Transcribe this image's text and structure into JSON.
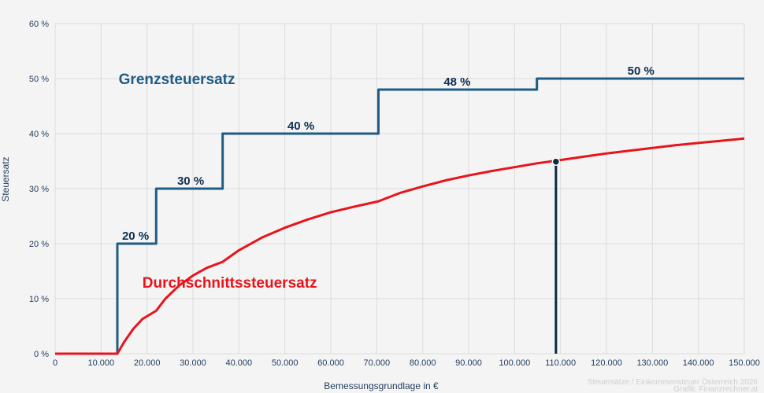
{
  "chart_data": {
    "type": "line",
    "title": "",
    "xlabel": "Bemessungsgrundlage in €",
    "ylabel": "Steuersatz",
    "xlim": [
      0,
      150000
    ],
    "ylim": [
      0,
      60
    ],
    "grid": true,
    "x_ticks": [
      {
        "value": 0,
        "label": "0"
      },
      {
        "value": 10000,
        "label": "10.000"
      },
      {
        "value": 20000,
        "label": "20.000"
      },
      {
        "value": 30000,
        "label": "30.000"
      },
      {
        "value": 40000,
        "label": "40.000"
      },
      {
        "value": 50000,
        "label": "50.000"
      },
      {
        "value": 60000,
        "label": "60.000"
      },
      {
        "value": 70000,
        "label": "70.000"
      },
      {
        "value": 80000,
        "label": "80.000"
      },
      {
        "value": 90000,
        "label": "90.000"
      },
      {
        "value": 100000,
        "label": "100.000"
      },
      {
        "value": 110000,
        "label": "110.000"
      },
      {
        "value": 120000,
        "label": "120.000"
      },
      {
        "value": 130000,
        "label": "130.000"
      },
      {
        "value": 140000,
        "label": "140.000"
      },
      {
        "value": 150000,
        "label": "150.000"
      }
    ],
    "y_ticks": [
      {
        "value": 0,
        "label": "0 %"
      },
      {
        "value": 10,
        "label": "10 %"
      },
      {
        "value": 20,
        "label": "20 %"
      },
      {
        "value": 30,
        "label": "30 %"
      },
      {
        "value": 40,
        "label": "40 %"
      },
      {
        "value": 50,
        "label": "50 %"
      },
      {
        "value": 60,
        "label": "60 %"
      }
    ],
    "series": [
      {
        "name": "Grenzsteuersatz",
        "color": "#1f5c85",
        "step": true,
        "x": [
          0,
          13541,
          21992,
          36458,
          70365,
          104859,
          150000
        ],
        "y": [
          0,
          20,
          30,
          40,
          48,
          50,
          50
        ]
      },
      {
        "name": "Durchschnittssteuersatz",
        "color": "#e8141c",
        "x": [
          0,
          13541,
          14000,
          15000,
          17000,
          19000,
          21992,
          24000,
          27000,
          30000,
          33000,
          36458,
          40000,
          45000,
          50000,
          55000,
          60000,
          65000,
          70365,
          75000,
          80000,
          85000,
          90000,
          95000,
          100000,
          104859,
          110000,
          115000,
          120000,
          125000,
          130000,
          135000,
          140000,
          145000,
          150000
        ],
        "y": [
          0,
          0,
          0.65,
          2.1,
          4.5,
          6.3,
          7.8,
          10.0,
          12.4,
          14.2,
          15.6,
          16.7,
          18.8,
          21.1,
          22.9,
          24.4,
          25.7,
          26.7,
          27.7,
          29.2,
          30.4,
          31.5,
          32.4,
          33.2,
          33.9,
          34.6,
          35.2,
          35.8,
          36.4,
          36.9,
          37.4,
          37.9,
          38.3,
          38.7,
          39.1
        ]
      }
    ],
    "step_labels": [
      {
        "text": "20 %",
        "x": 17500,
        "y": 20
      },
      {
        "text": "30 %",
        "x": 29500,
        "y": 30
      },
      {
        "text": "40 %",
        "x": 53500,
        "y": 40
      },
      {
        "text": "48 %",
        "x": 87500,
        "y": 48
      },
      {
        "text": "50 %",
        "x": 127500,
        "y": 50
      }
    ],
    "series_labels": [
      {
        "text": "Grenzsteuersatz",
        "series": 0,
        "x": 26500,
        "y": 50
      },
      {
        "text": "Durchschnittssteuersatz",
        "series": 1,
        "x": 38000,
        "y": 13
      }
    ],
    "marker": {
      "x": 109000,
      "y": 34.9,
      "color": "#0d2a40"
    },
    "credit": [
      "Steuersätze / Einkommensteuer Österreich 2026",
      "Grafik: Finanzrechner.at"
    ]
  }
}
